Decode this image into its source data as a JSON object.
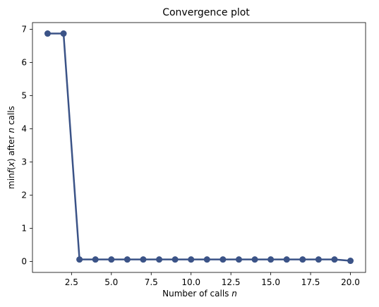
{
  "chart_data": {
    "type": "line",
    "title": "Convergence plot",
    "xlabel": {
      "prefix": "Number of calls ",
      "var": "n"
    },
    "ylabel": {
      "p1": "min",
      "f": "f",
      "p2": "(",
      "x": "x",
      "p3": ") after ",
      "n": "n",
      "p4": " calls"
    },
    "xlim": [
      0.05,
      20.95
    ],
    "ylim": [
      -0.33,
      7.2
    ],
    "x_ticks": [
      2.5,
      5.0,
      7.5,
      10.0,
      12.5,
      15.0,
      17.5,
      20.0
    ],
    "x_tick_labels": [
      "2.5",
      "5.0",
      "7.5",
      "10.0",
      "12.5",
      "15.0",
      "17.5",
      "20.0"
    ],
    "y_ticks": [
      0,
      1,
      2,
      3,
      4,
      5,
      6,
      7
    ],
    "y_tick_labels": [
      "0",
      "1",
      "2",
      "3",
      "4",
      "5",
      "6",
      "7"
    ],
    "grid": false,
    "series": [
      {
        "color": "#3b5387",
        "x": [
          1,
          2,
          3,
          4,
          5,
          6,
          7,
          8,
          9,
          10,
          11,
          12,
          13,
          14,
          15,
          16,
          17,
          18,
          19,
          20
        ],
        "y": [
          6.87,
          6.87,
          0.06,
          0.06,
          0.06,
          0.06,
          0.06,
          0.06,
          0.06,
          0.06,
          0.06,
          0.06,
          0.06,
          0.06,
          0.06,
          0.06,
          0.06,
          0.06,
          0.06,
          0.02
        ]
      }
    ]
  }
}
